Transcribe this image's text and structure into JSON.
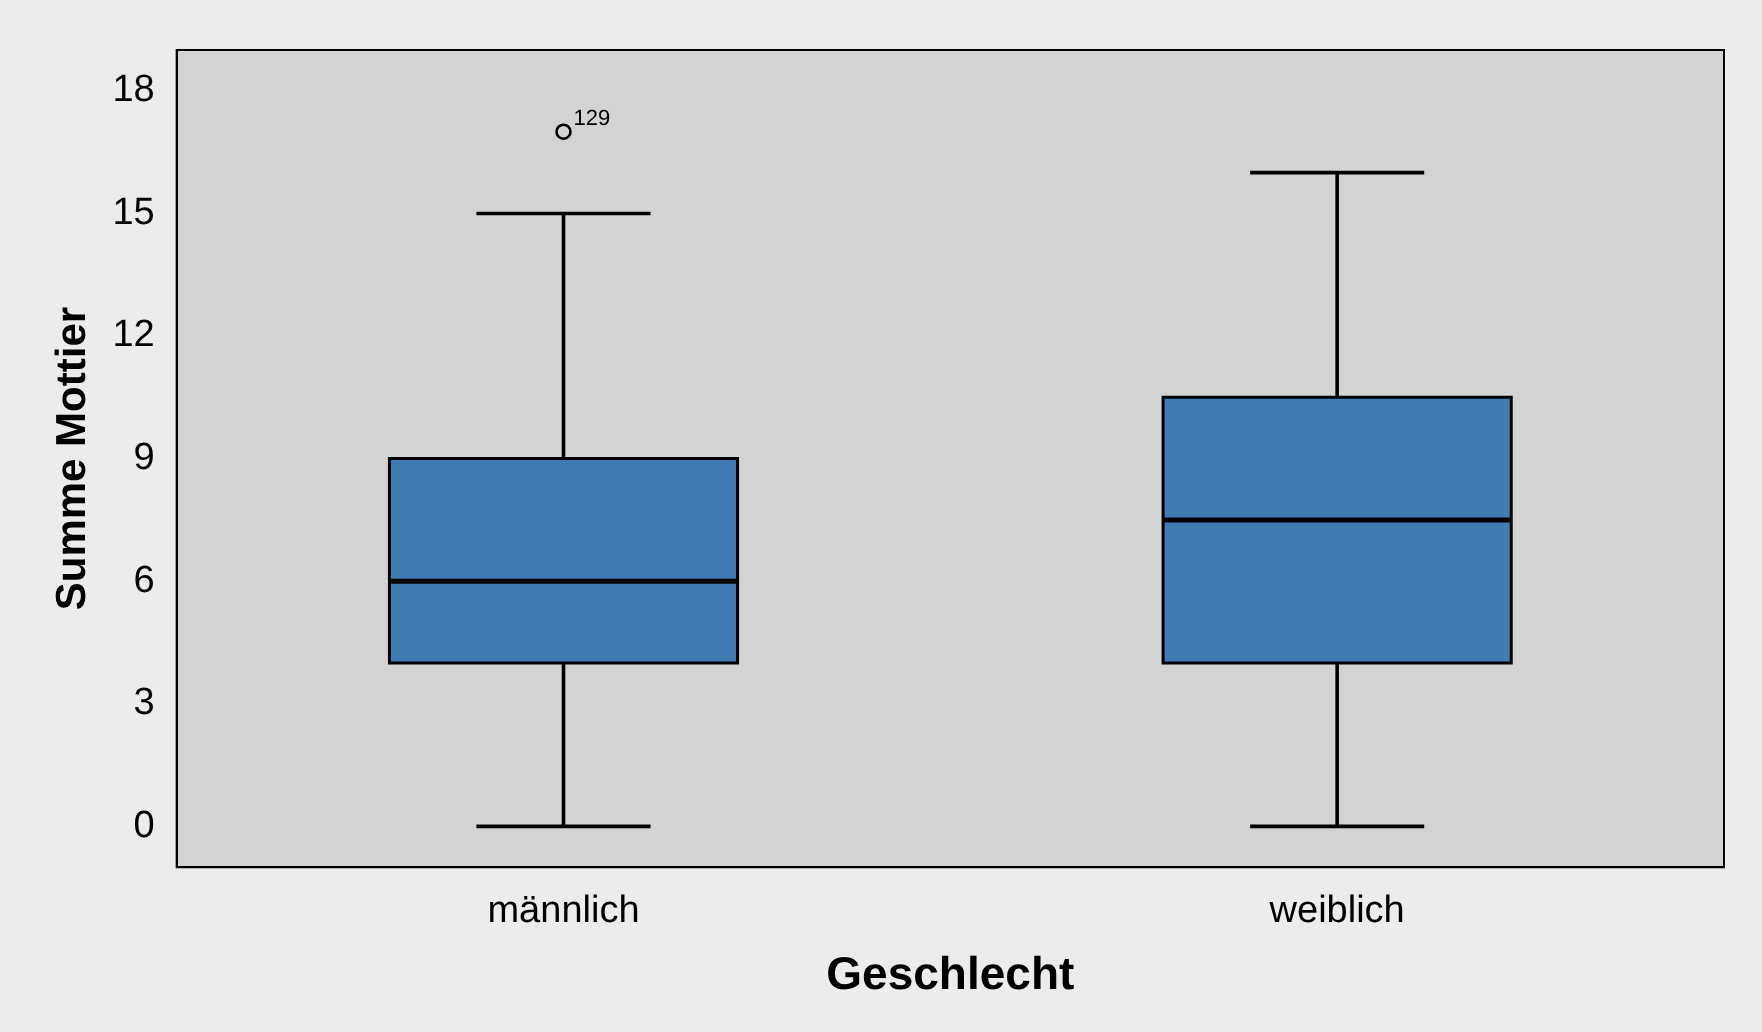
{
  "chart_data": {
    "type": "box",
    "xlabel": "Geschlecht",
    "ylabel": "Summe Mottier",
    "categories": [
      "männlich",
      "weiblich"
    ],
    "color": "#3e7cb3",
    "boxes": [
      {
        "low": 0,
        "q1": 4,
        "median": 6,
        "q3": 9,
        "high": 15,
        "outliers": [
          17
        ]
      },
      {
        "low": 0,
        "q1": 4,
        "median": 7.5,
        "q3": 10.5,
        "high": 16
      }
    ],
    "ylim": [
      -1,
      19
    ],
    "yticks": [
      0,
      3,
      6,
      9,
      12,
      15,
      18
    ],
    "annotations": [
      "129"
    ]
  }
}
